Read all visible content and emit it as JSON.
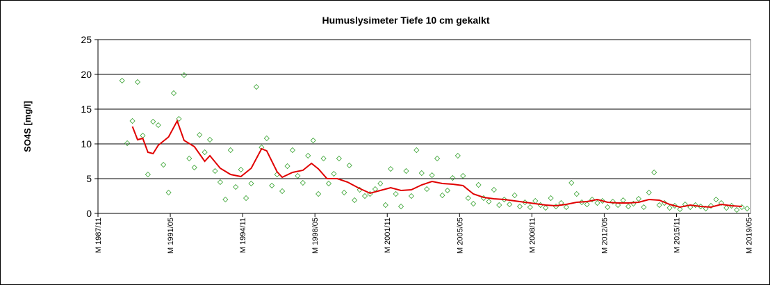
{
  "chart_data": {
    "type": "scatter",
    "title": "Humuslysimeter Tiefe  10 cm   gekalkt",
    "y_label": "SO4S [mg/l]",
    "ylim": [
      0,
      25
    ],
    "yticks": [
      0,
      5,
      10,
      15,
      20,
      25
    ],
    "grid": true,
    "xlim": [
      "1987/11",
      "2019/06"
    ],
    "xticks": [
      {
        "value": "1987/11",
        "label": "M 1987/11"
      },
      {
        "value": "1991/05",
        "label": "M 1991/05"
      },
      {
        "value": "1994/11",
        "label": "M 1994/11"
      },
      {
        "value": "1998/05",
        "label": "M 1998/05"
      },
      {
        "value": "2001/11",
        "label": "M 2001/11"
      },
      {
        "value": "2005/05",
        "label": "M 2005/05"
      },
      {
        "value": "2008/11",
        "label": "M 2008/11"
      },
      {
        "value": "2012/05",
        "label": "M 2012/05"
      },
      {
        "value": "2015/11",
        "label": "M 2015/11"
      },
      {
        "value": "2019/05",
        "label": "M 2019/05"
      }
    ],
    "series": [
      {
        "type": "scatter",
        "marker": "diamond",
        "color": "#33a02c",
        "x": [
          "1989/01",
          "1989/04",
          "1989/07",
          "1989/10",
          "1990/01",
          "1990/04",
          "1990/07",
          "1990/10",
          "1991/01",
          "1991/04",
          "1991/07",
          "1991/10",
          "1992/01",
          "1992/04",
          "1992/07",
          "1992/10",
          "1993/01",
          "1993/04",
          "1993/07",
          "1993/10",
          "1994/01",
          "1994/04",
          "1994/07",
          "1994/10",
          "1995/01",
          "1995/04",
          "1995/07",
          "1995/10",
          "1996/01",
          "1996/04",
          "1996/07",
          "1996/10",
          "1997/01",
          "1997/04",
          "1997/07",
          "1997/10",
          "1998/01",
          "1998/04",
          "1998/07",
          "1998/10",
          "1999/01",
          "1999/04",
          "1999/07",
          "1999/10",
          "2000/01",
          "2000/04",
          "2000/07",
          "2000/10",
          "2001/01",
          "2001/04",
          "2001/07",
          "2001/10",
          "2002/01",
          "2002/04",
          "2002/07",
          "2002/10",
          "2003/01",
          "2003/04",
          "2003/07",
          "2003/10",
          "2004/01",
          "2004/04",
          "2004/07",
          "2004/10",
          "2005/01",
          "2005/04",
          "2005/07",
          "2005/10",
          "2006/01",
          "2006/04",
          "2006/07",
          "2006/10",
          "2007/01",
          "2007/04",
          "2007/07",
          "2007/10",
          "2008/01",
          "2008/04",
          "2008/07",
          "2008/10",
          "2009/01",
          "2009/04",
          "2009/07",
          "2009/10",
          "2010/01",
          "2010/04",
          "2010/07",
          "2010/10",
          "2011/01",
          "2011/04",
          "2011/07",
          "2011/10",
          "2012/01",
          "2012/04",
          "2012/07",
          "2012/10",
          "2013/01",
          "2013/04",
          "2013/07",
          "2013/10",
          "2014/01",
          "2014/04",
          "2014/07",
          "2014/10",
          "2015/01",
          "2015/04",
          "2015/07",
          "2015/10",
          "2016/01",
          "2016/04",
          "2016/07",
          "2016/10",
          "2017/01",
          "2017/04",
          "2017/07",
          "2017/10",
          "2018/01",
          "2018/04",
          "2018/07",
          "2018/10",
          "2019/01",
          "2019/04"
        ],
        "values": [
          19.1,
          10.1,
          13.3,
          18.9,
          11.2,
          5.6,
          13.2,
          12.7,
          7.0,
          3.0,
          17.3,
          13.6,
          19.9,
          7.9,
          6.6,
          11.3,
          8.8,
          10.6,
          6.1,
          4.5,
          2.0,
          9.1,
          3.8,
          6.3,
          2.2,
          4.3,
          18.2,
          9.5,
          10.8,
          4.0,
          5.6,
          3.2,
          6.8,
          9.1,
          5.4,
          4.4,
          8.3,
          10.5,
          2.8,
          7.9,
          4.3,
          5.7,
          7.9,
          3.0,
          6.9,
          1.9,
          3.4,
          2.5,
          2.8,
          3.5,
          4.3,
          1.2,
          6.4,
          2.8,
          1.0,
          6.1,
          2.5,
          9.1,
          5.8,
          3.5,
          5.5,
          7.9,
          2.6,
          3.3,
          5.1,
          8.3,
          5.4,
          2.2,
          1.4,
          4.1,
          2.2,
          1.7,
          3.4,
          1.2,
          2.0,
          1.3,
          2.6,
          1.0,
          1.6,
          0.9,
          1.8,
          1.2,
          0.8,
          2.2,
          1.0,
          1.5,
          0.9,
          4.4,
          2.8,
          1.6,
          1.3,
          2.0,
          1.5,
          1.8,
          0.9,
          1.7,
          1.2,
          1.9,
          1.0,
          1.4,
          2.1,
          0.9,
          3.0,
          5.9,
          1.2,
          1.5,
          0.8,
          1.1,
          0.6,
          1.3,
          0.9,
          1.2,
          1.0,
          0.7,
          1.1,
          2.0,
          1.5,
          0.8,
          1.1,
          0.5,
          0.9,
          0.7
        ]
      },
      {
        "type": "line",
        "color": "#e00000",
        "x": [
          "1989/07",
          "1989/10",
          "1990/01",
          "1990/04",
          "1990/07",
          "1990/10",
          "1991/04",
          "1991/09",
          "1992/01",
          "1992/07",
          "1993/01",
          "1993/04",
          "1993/10",
          "1994/04",
          "1994/10",
          "1995/04",
          "1995/10",
          "1996/01",
          "1996/07",
          "1996/10",
          "1997/04",
          "1997/10",
          "1998/03",
          "1998/07",
          "1998/12",
          "1999/06",
          "1999/12",
          "2000/06",
          "2001/01",
          "2001/07",
          "2002/01",
          "2002/07",
          "2003/01",
          "2003/07",
          "2004/01",
          "2004/07",
          "2005/01",
          "2005/07",
          "2006/01",
          "2006/07",
          "2007/01",
          "2007/07",
          "2008/01",
          "2008/07",
          "2009/01",
          "2009/07",
          "2010/01",
          "2010/07",
          "2011/01",
          "2011/07",
          "2012/01",
          "2012/07",
          "2013/01",
          "2013/07",
          "2014/01",
          "2014/07",
          "2015/01",
          "2015/07",
          "2016/01",
          "2016/07",
          "2017/01",
          "2017/07",
          "2018/01",
          "2018/07",
          "2019/01"
        ],
        "values": [
          12.5,
          10.6,
          10.8,
          8.8,
          8.6,
          9.8,
          11.0,
          13.3,
          10.5,
          9.6,
          7.5,
          8.3,
          6.5,
          5.6,
          5.3,
          6.5,
          9.3,
          9.0,
          6.0,
          5.2,
          5.9,
          6.2,
          7.2,
          6.4,
          5.0,
          5.0,
          4.5,
          3.7,
          2.9,
          3.3,
          3.7,
          3.3,
          3.4,
          4.1,
          4.6,
          4.3,
          4.2,
          4.0,
          2.8,
          2.3,
          2.1,
          2.0,
          1.8,
          1.6,
          1.4,
          1.2,
          1.1,
          1.3,
          1.6,
          1.7,
          2.0,
          1.6,
          1.5,
          1.5,
          1.6,
          2.0,
          1.9,
          1.3,
          0.9,
          1.2,
          1.0,
          0.9,
          1.3,
          1.1,
          1.0
        ]
      }
    ]
  }
}
